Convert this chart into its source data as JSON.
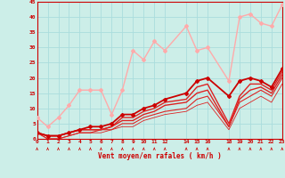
{
  "background_color": "#cceee8",
  "grid_color": "#aadddd",
  "xlabel": "Vent moyen/en rafales ( km/h )",
  "xlim": [
    0,
    23
  ],
  "ylim": [
    0,
    45
  ],
  "yticks": [
    0,
    5,
    10,
    15,
    20,
    25,
    30,
    35,
    40,
    45
  ],
  "xtick_positions": [
    0,
    1,
    2,
    3,
    4,
    5,
    6,
    7,
    8,
    9,
    10,
    11,
    12,
    14,
    15,
    16,
    18,
    19,
    20,
    21,
    22,
    23
  ],
  "xtick_labels": [
    "0",
    "1",
    "2",
    "3",
    "4",
    "5",
    "6",
    "7",
    "8",
    "9",
    "10",
    "11",
    "12",
    "14",
    "15",
    "16",
    "18",
    "19",
    "20",
    "21",
    "22",
    "23"
  ],
  "series": [
    {
      "x": [
        0,
        1,
        2,
        3,
        4,
        5,
        6,
        7,
        8,
        9,
        10,
        11,
        12,
        14,
        15,
        16,
        18,
        19,
        20,
        21,
        22,
        23
      ],
      "y": [
        7,
        4,
        7,
        11,
        16,
        16,
        16,
        8,
        16,
        29,
        26,
        32,
        29,
        37,
        29,
        30,
        19,
        40,
        41,
        38,
        37,
        44
      ],
      "color": "#ffaaaa",
      "lw": 1.0,
      "marker": "D",
      "ms": 2.0
    },
    {
      "x": [
        0,
        1,
        2,
        3,
        4,
        5,
        6,
        7,
        8,
        9,
        10,
        11,
        12,
        14,
        15,
        16,
        18,
        19,
        20,
        21,
        22,
        23
      ],
      "y": [
        2,
        1,
        1,
        2,
        3,
        4,
        4,
        5,
        8,
        8,
        10,
        11,
        13,
        15,
        19,
        20,
        14,
        19,
        20,
        19,
        17,
        23
      ],
      "color": "#cc0000",
      "lw": 1.3,
      "marker": "D",
      "ms": 2.0
    },
    {
      "x": [
        0,
        1,
        2,
        3,
        4,
        5,
        6,
        7,
        8,
        9,
        10,
        11,
        12,
        14,
        15,
        16,
        18,
        19,
        20,
        21,
        22,
        23
      ],
      "y": [
        2,
        1,
        1,
        2,
        3,
        3,
        3,
        4,
        7,
        7,
        9,
        10,
        12,
        13,
        17,
        18,
        5,
        14,
        18,
        18,
        16,
        22
      ],
      "color": "#dd2222",
      "lw": 1.0,
      "marker": null,
      "ms": 0
    },
    {
      "x": [
        0,
        1,
        2,
        3,
        4,
        5,
        6,
        7,
        8,
        9,
        10,
        11,
        12,
        14,
        15,
        16,
        18,
        19,
        20,
        21,
        22,
        23
      ],
      "y": [
        2,
        1,
        1,
        2,
        3,
        3,
        3,
        4,
        6,
        6,
        8,
        9,
        11,
        12,
        15,
        16,
        4,
        13,
        16,
        17,
        15,
        21
      ],
      "color": "#dd2222",
      "lw": 1.0,
      "marker": null,
      "ms": 0
    },
    {
      "x": [
        0,
        1,
        2,
        3,
        4,
        5,
        6,
        7,
        8,
        9,
        10,
        11,
        12,
        14,
        15,
        16,
        18,
        19,
        20,
        21,
        22,
        23
      ],
      "y": [
        2,
        0,
        0,
        1,
        2,
        2,
        3,
        3,
        5,
        5,
        7,
        8,
        9,
        10,
        13,
        14,
        4,
        12,
        14,
        16,
        14,
        20
      ],
      "color": "#dd2222",
      "lw": 0.8,
      "marker": null,
      "ms": 0
    },
    {
      "x": [
        0,
        1,
        2,
        3,
        4,
        5,
        6,
        7,
        8,
        9,
        10,
        11,
        12,
        14,
        15,
        16,
        18,
        19,
        20,
        21,
        22,
        23
      ],
      "y": [
        2,
        0,
        0,
        1,
        2,
        2,
        2,
        3,
        4,
        4,
        6,
        7,
        8,
        9,
        11,
        12,
        3,
        10,
        12,
        14,
        12,
        18
      ],
      "color": "#dd2222",
      "lw": 0.6,
      "marker": null,
      "ms": 0
    }
  ]
}
